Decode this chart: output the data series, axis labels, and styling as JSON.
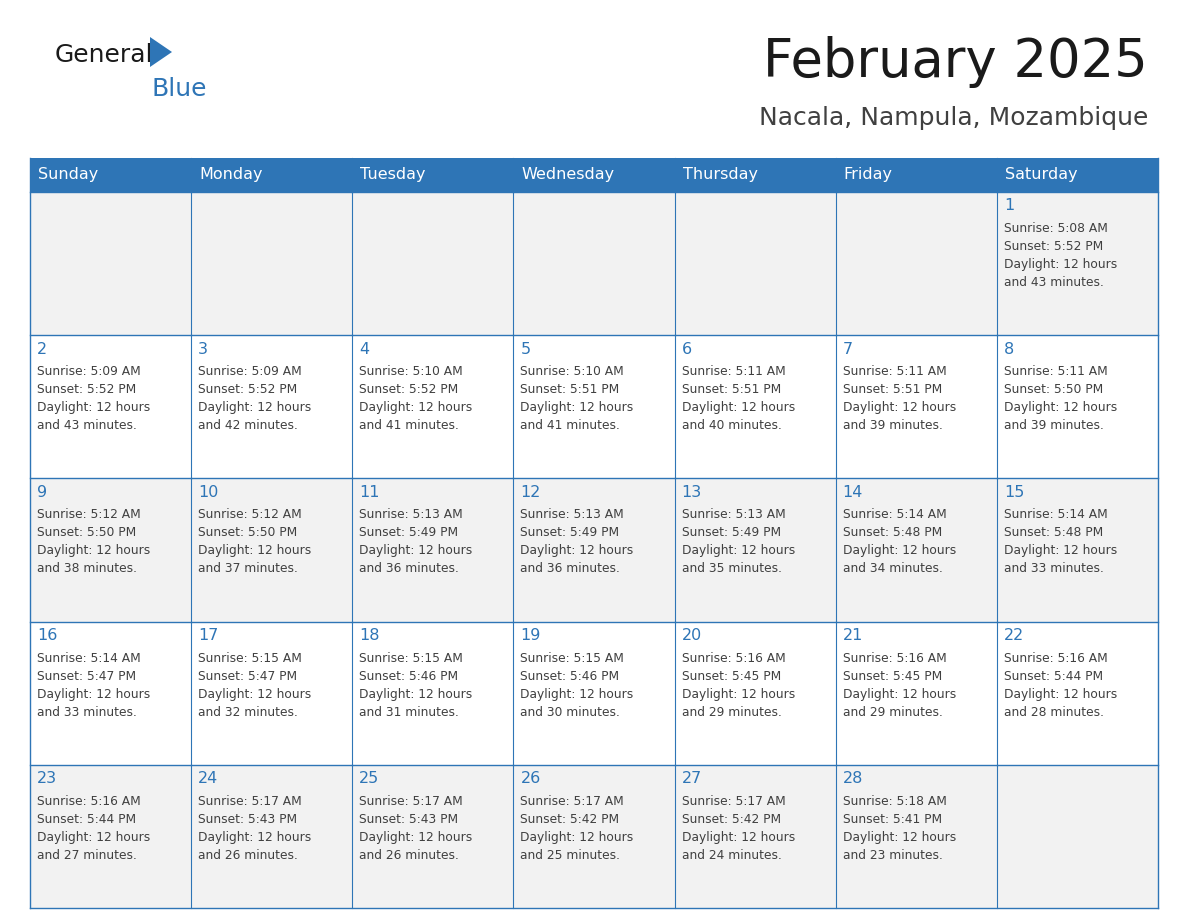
{
  "title": "February 2025",
  "subtitle": "Nacala, Nampula, Mozambique",
  "header_bg_color": "#2E75B6",
  "header_text_color": "#FFFFFF",
  "cell_bg_odd": "#F2F2F2",
  "cell_bg_even": "#FFFFFF",
  "border_color": "#2E75B6",
  "day_names": [
    "Sunday",
    "Monday",
    "Tuesday",
    "Wednesday",
    "Thursday",
    "Friday",
    "Saturday"
  ],
  "title_color": "#1a1a1a",
  "subtitle_color": "#404040",
  "day_number_color": "#2E75B6",
  "cell_text_color": "#404040",
  "weeks": [
    [
      {
        "day": 0,
        "text": ""
      },
      {
        "day": 0,
        "text": ""
      },
      {
        "day": 0,
        "text": ""
      },
      {
        "day": 0,
        "text": ""
      },
      {
        "day": 0,
        "text": ""
      },
      {
        "day": 0,
        "text": ""
      },
      {
        "day": 1,
        "text": "Sunrise: 5:08 AM\nSunset: 5:52 PM\nDaylight: 12 hours\nand 43 minutes."
      }
    ],
    [
      {
        "day": 2,
        "text": "Sunrise: 5:09 AM\nSunset: 5:52 PM\nDaylight: 12 hours\nand 43 minutes."
      },
      {
        "day": 3,
        "text": "Sunrise: 5:09 AM\nSunset: 5:52 PM\nDaylight: 12 hours\nand 42 minutes."
      },
      {
        "day": 4,
        "text": "Sunrise: 5:10 AM\nSunset: 5:52 PM\nDaylight: 12 hours\nand 41 minutes."
      },
      {
        "day": 5,
        "text": "Sunrise: 5:10 AM\nSunset: 5:51 PM\nDaylight: 12 hours\nand 41 minutes."
      },
      {
        "day": 6,
        "text": "Sunrise: 5:11 AM\nSunset: 5:51 PM\nDaylight: 12 hours\nand 40 minutes."
      },
      {
        "day": 7,
        "text": "Sunrise: 5:11 AM\nSunset: 5:51 PM\nDaylight: 12 hours\nand 39 minutes."
      },
      {
        "day": 8,
        "text": "Sunrise: 5:11 AM\nSunset: 5:50 PM\nDaylight: 12 hours\nand 39 minutes."
      }
    ],
    [
      {
        "day": 9,
        "text": "Sunrise: 5:12 AM\nSunset: 5:50 PM\nDaylight: 12 hours\nand 38 minutes."
      },
      {
        "day": 10,
        "text": "Sunrise: 5:12 AM\nSunset: 5:50 PM\nDaylight: 12 hours\nand 37 minutes."
      },
      {
        "day": 11,
        "text": "Sunrise: 5:13 AM\nSunset: 5:49 PM\nDaylight: 12 hours\nand 36 minutes."
      },
      {
        "day": 12,
        "text": "Sunrise: 5:13 AM\nSunset: 5:49 PM\nDaylight: 12 hours\nand 36 minutes."
      },
      {
        "day": 13,
        "text": "Sunrise: 5:13 AM\nSunset: 5:49 PM\nDaylight: 12 hours\nand 35 minutes."
      },
      {
        "day": 14,
        "text": "Sunrise: 5:14 AM\nSunset: 5:48 PM\nDaylight: 12 hours\nand 34 minutes."
      },
      {
        "day": 15,
        "text": "Sunrise: 5:14 AM\nSunset: 5:48 PM\nDaylight: 12 hours\nand 33 minutes."
      }
    ],
    [
      {
        "day": 16,
        "text": "Sunrise: 5:14 AM\nSunset: 5:47 PM\nDaylight: 12 hours\nand 33 minutes."
      },
      {
        "day": 17,
        "text": "Sunrise: 5:15 AM\nSunset: 5:47 PM\nDaylight: 12 hours\nand 32 minutes."
      },
      {
        "day": 18,
        "text": "Sunrise: 5:15 AM\nSunset: 5:46 PM\nDaylight: 12 hours\nand 31 minutes."
      },
      {
        "day": 19,
        "text": "Sunrise: 5:15 AM\nSunset: 5:46 PM\nDaylight: 12 hours\nand 30 minutes."
      },
      {
        "day": 20,
        "text": "Sunrise: 5:16 AM\nSunset: 5:45 PM\nDaylight: 12 hours\nand 29 minutes."
      },
      {
        "day": 21,
        "text": "Sunrise: 5:16 AM\nSunset: 5:45 PM\nDaylight: 12 hours\nand 29 minutes."
      },
      {
        "day": 22,
        "text": "Sunrise: 5:16 AM\nSunset: 5:44 PM\nDaylight: 12 hours\nand 28 minutes."
      }
    ],
    [
      {
        "day": 23,
        "text": "Sunrise: 5:16 AM\nSunset: 5:44 PM\nDaylight: 12 hours\nand 27 minutes."
      },
      {
        "day": 24,
        "text": "Sunrise: 5:17 AM\nSunset: 5:43 PM\nDaylight: 12 hours\nand 26 minutes."
      },
      {
        "day": 25,
        "text": "Sunrise: 5:17 AM\nSunset: 5:43 PM\nDaylight: 12 hours\nand 26 minutes."
      },
      {
        "day": 26,
        "text": "Sunrise: 5:17 AM\nSunset: 5:42 PM\nDaylight: 12 hours\nand 25 minutes."
      },
      {
        "day": 27,
        "text": "Sunrise: 5:17 AM\nSunset: 5:42 PM\nDaylight: 12 hours\nand 24 minutes."
      },
      {
        "day": 28,
        "text": "Sunrise: 5:18 AM\nSunset: 5:41 PM\nDaylight: 12 hours\nand 23 minutes."
      },
      {
        "day": 0,
        "text": ""
      }
    ]
  ],
  "logo_text_general": "General",
  "logo_text_blue": "Blue",
  "logo_triangle_color": "#2E75B6",
  "logo_general_color": "#1a1a1a"
}
